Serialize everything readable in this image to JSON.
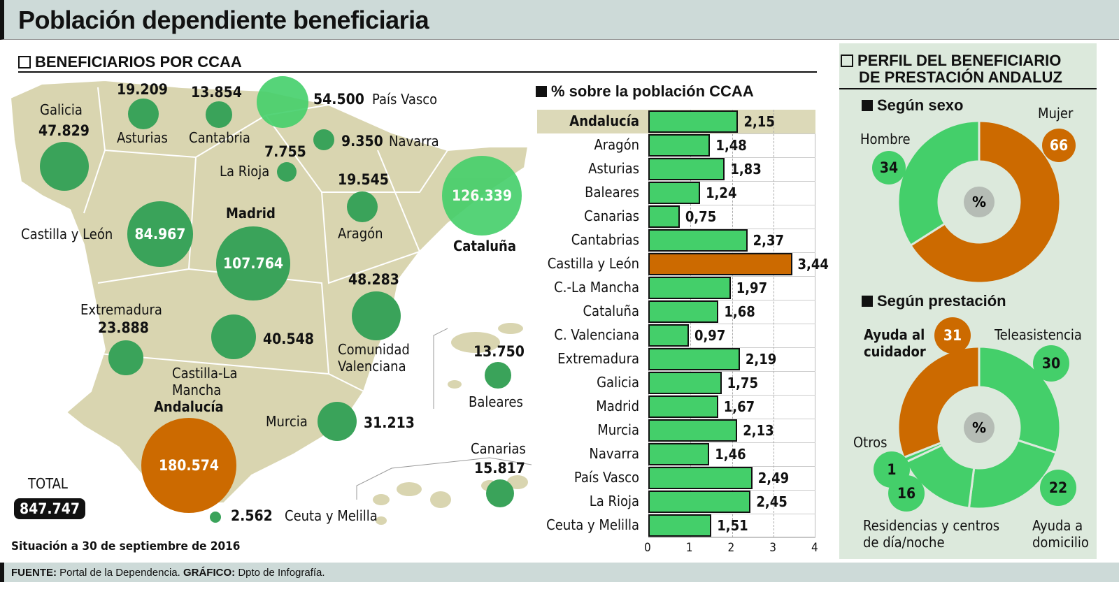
{
  "title": "Población dependiente beneficiaria",
  "map_section": {
    "title": "BENEFICIARIOS POR CCAA",
    "total_label": "TOTAL",
    "total_value": "847.747",
    "date_note": "Situación a 30 de septiembre de 2016"
  },
  "map_items": [
    {
      "name": "Galicia",
      "value": "47.829"
    },
    {
      "name": "Asturias",
      "value": "19.209"
    },
    {
      "name": "Cantabria",
      "value": "13.854"
    },
    {
      "name": "País Vasco",
      "value": "54.500"
    },
    {
      "name": "Navarra",
      "value": "9.350"
    },
    {
      "name": "La Rioja",
      "value": "7.755"
    },
    {
      "name": "Aragón",
      "value": "19.545"
    },
    {
      "name": "Cataluña",
      "value": "126.339"
    },
    {
      "name": "Castilla y León",
      "value": "84.967"
    },
    {
      "name": "Madrid",
      "value": "107.764"
    },
    {
      "name": "Comunidad Valenciana",
      "value": "48.283"
    },
    {
      "name": "Extremadura",
      "value": "23.888"
    },
    {
      "name": "Castilla-La Mancha",
      "value": "40.548"
    },
    {
      "name": "Murcia",
      "value": "31.213"
    },
    {
      "name": "Andalucía",
      "value": "180.574"
    },
    {
      "name": "Baleares",
      "value": "13.750"
    },
    {
      "name": "Canarias",
      "value": "15.817"
    },
    {
      "name": "Ceuta y Melilla",
      "value": "2.562"
    }
  ],
  "colors": {
    "green": "#44cf6a",
    "dark_green": "#3aa35a",
    "orange": "#cc6a00",
    "map": "#d9d5b0",
    "panel": "#dce9dc",
    "highlight": "#dcd9b8"
  },
  "chart_data": [
    {
      "type": "bar",
      "orientation": "horizontal",
      "title": "% sobre la población CCAA",
      "categories": [
        "Andalucía",
        "Aragón",
        "Asturias",
        "Baleares",
        "Canarias",
        "Cantabrias",
        "Castilla y León",
        "C.-La Mancha",
        "Cataluña",
        "C. Valenciana",
        "Extremadura",
        "Galicia",
        "Madrid",
        "Murcia",
        "Navarra",
        "País Vasco",
        "La Rioja",
        "Ceuta y Melilla"
      ],
      "values": [
        2.15,
        1.48,
        1.83,
        1.24,
        0.75,
        2.37,
        3.44,
        1.97,
        1.68,
        0.97,
        2.19,
        1.75,
        1.67,
        2.13,
        1.46,
        2.49,
        2.45,
        1.51
      ],
      "value_labels": [
        "2,15",
        "1,48",
        "1,83",
        "1,24",
        "0,75",
        "2,37",
        "3,44",
        "1,97",
        "1,68",
        "0,97",
        "2,19",
        "1,75",
        "1,67",
        "2,13",
        "1,46",
        "2,49",
        "2,45",
        "1,51"
      ],
      "highlight_row": "Andalucía",
      "max_bar": "Castilla y León",
      "xlim": [
        0,
        4
      ],
      "xticks": [
        "0",
        "1",
        "2",
        "3",
        "4"
      ],
      "grid": "dashed vertical"
    },
    {
      "type": "pie",
      "variant": "donut",
      "title": "Según sexo",
      "center_label": "%",
      "labels": [
        "Mujer",
        "Hombre"
      ],
      "values": [
        66,
        34
      ],
      "colors": [
        "#cc6a00",
        "#44cf6a"
      ]
    },
    {
      "type": "pie",
      "variant": "donut",
      "title": "Según prestación",
      "center_label": "%",
      "labels": [
        "Teleasistencia",
        "Ayuda a domicilio",
        "Residencias y centros de día/noche",
        "Otros",
        "Ayuda al cuidador"
      ],
      "values": [
        30,
        22,
        16,
        1,
        31
      ],
      "colors": [
        "#44cf6a",
        "#44cf6a",
        "#44cf6a",
        "#44cf6a",
        "#cc6a00"
      ]
    }
  ],
  "profile_section": {
    "title_line1": "PERFIL DEL BENEFICIARIO",
    "title_line2": "DE PRESTACIÓN ANDALUZ"
  },
  "footer": {
    "source_label": "FUENTE:",
    "source": "Portal de la Dependencia.",
    "graphic_label": "GRÁFICO:",
    "graphic": "Dpto de Infografía."
  }
}
